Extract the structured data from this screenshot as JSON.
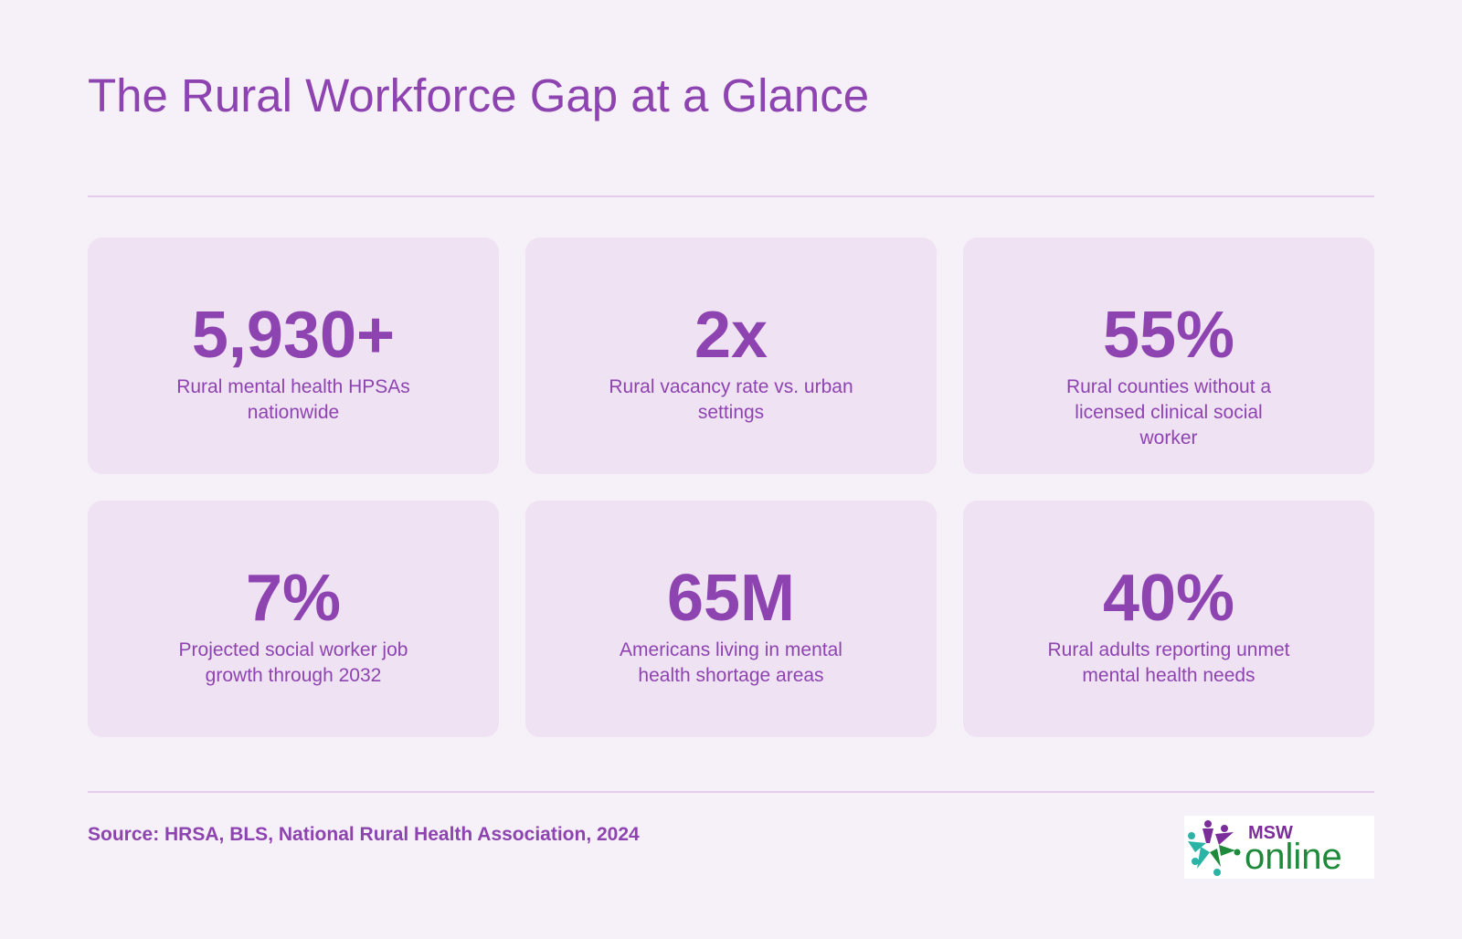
{
  "header": {
    "title": "The Rural Workforce Gap at a Glance"
  },
  "stats": [
    {
      "value": "5,930+",
      "label": "Rural mental health HPSAs nationwide"
    },
    {
      "value": "2x",
      "label": "Rural vacancy rate vs. urban settings"
    },
    {
      "value": "55%",
      "label": "Rural counties without a licensed clinical social worker"
    },
    {
      "value": "7%",
      "label": "Projected social worker job growth through 2032"
    },
    {
      "value": "65M",
      "label": "Americans living in mental health shortage areas"
    },
    {
      "value": "40%",
      "label": "Rural adults reporting unmet mental health needs"
    }
  ],
  "footer": {
    "source": "Source: HRSA, BLS, National Rural Health Association, 2024",
    "logo": {
      "msw": "MSW",
      "online": "online"
    }
  },
  "colors": {
    "background": "#f6f0f8",
    "card": "#efe2f3",
    "accent": "#8e44b0",
    "divider": "#e3ccec",
    "logo_green": "#1e8a3c",
    "logo_teal": "#2bb3a6",
    "logo_purple": "#7b2d9a"
  }
}
